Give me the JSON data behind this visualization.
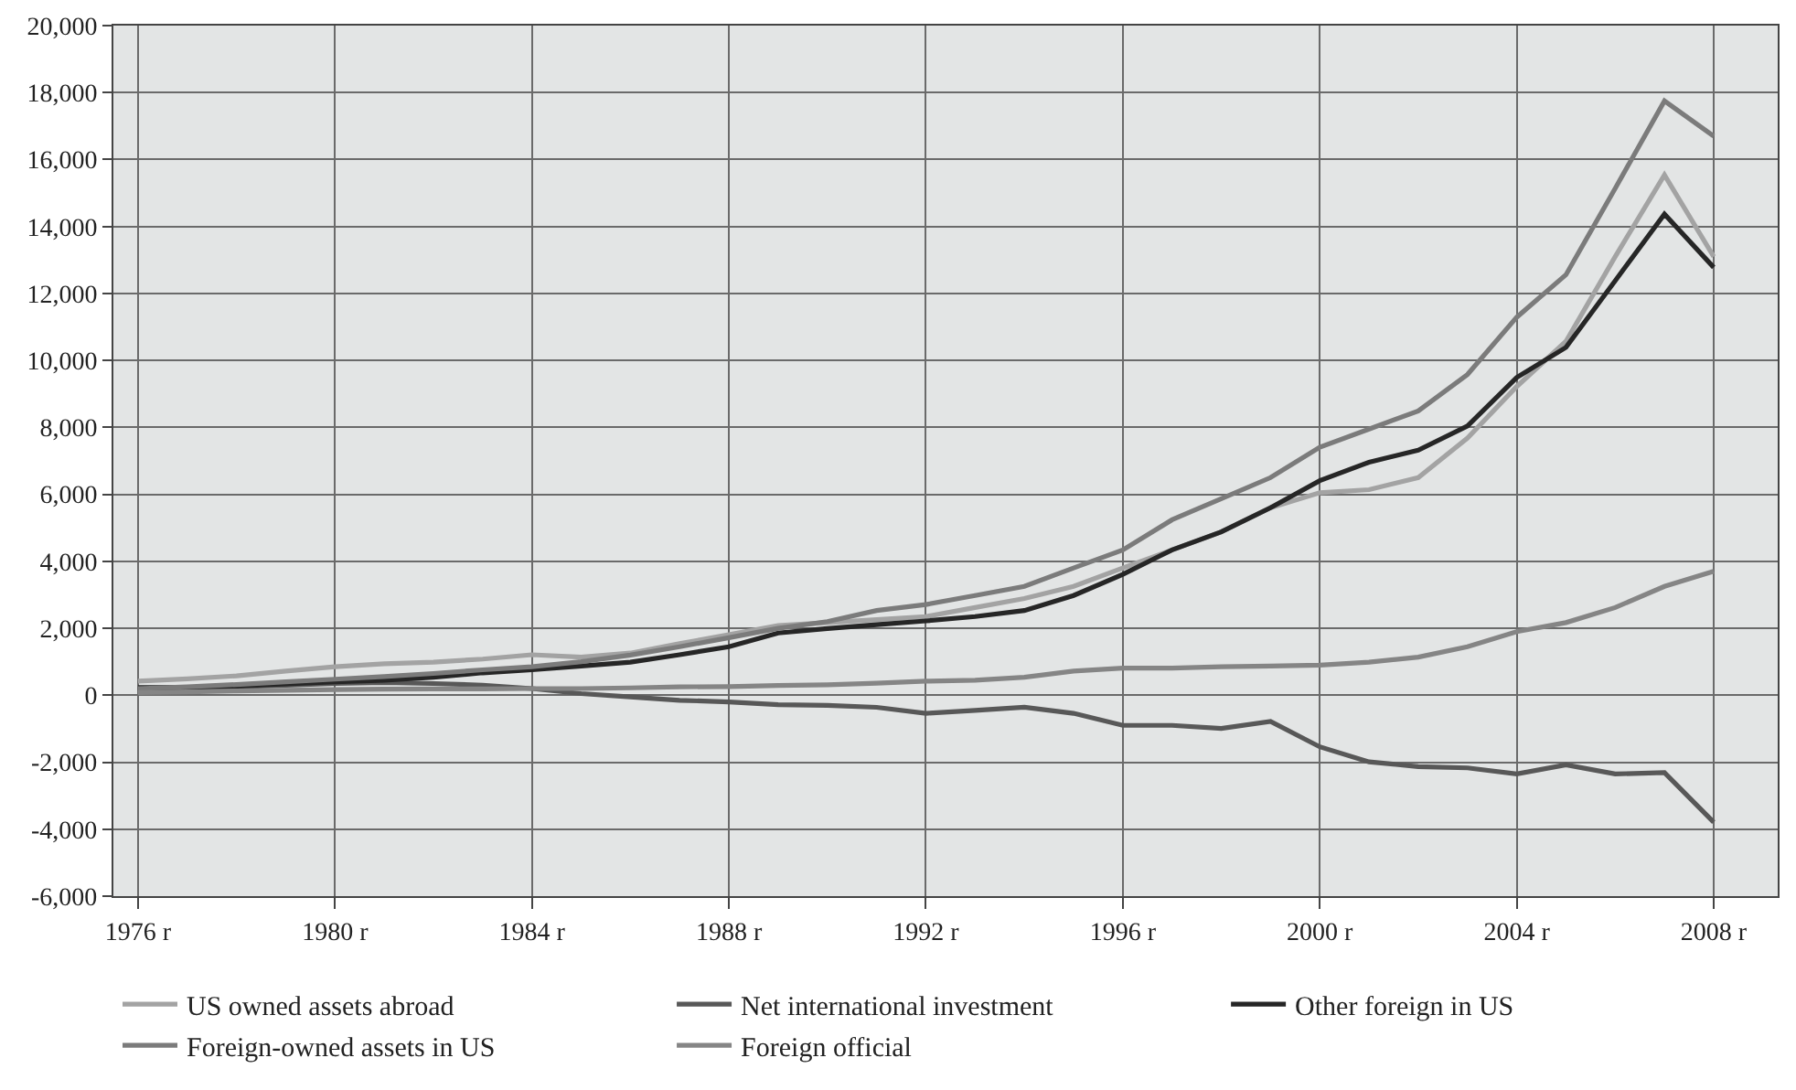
{
  "chart_data": {
    "type": "line",
    "x": [
      1976,
      1977,
      1978,
      1979,
      1980,
      1981,
      1982,
      1983,
      1984,
      1985,
      1986,
      1987,
      1988,
      1989,
      1990,
      1991,
      1992,
      1993,
      1994,
      1995,
      1996,
      1997,
      1998,
      1999,
      2000,
      2001,
      2002,
      2003,
      2004,
      2005,
      2006,
      2007,
      2008
    ],
    "series": [
      {
        "name": "US owned assets abroad",
        "color": "#a3a3a3",
        "values": [
          420,
          490,
          580,
          720,
          850,
          940,
          990,
          1080,
          1210,
          1140,
          1260,
          1540,
          1810,
          2080,
          2170,
          2260,
          2350,
          2620,
          2890,
          3250,
          3800,
          4340,
          4880,
          5600,
          6050,
          6140,
          6500,
          7680,
          9220,
          10570,
          13100,
          15540,
          13100
        ]
      },
      {
        "name": "Net international investment",
        "color": "#585858",
        "values": [
          180,
          200,
          250,
          300,
          350,
          380,
          350,
          300,
          200,
          50,
          -50,
          -150,
          -200,
          -280,
          -300,
          -360,
          -540,
          -450,
          -360,
          -540,
          -900,
          -900,
          -990,
          -780,
          -1540,
          -1990,
          -2130,
          -2170,
          -2350,
          -2080,
          -2350,
          -2310,
          -3790
        ]
      },
      {
        "name": "Other foreign in US",
        "color": "#262626",
        "values": [
          230,
          230,
          270,
          340,
          400,
          450,
          540,
          670,
          760,
          870,
          990,
          1210,
          1450,
          1860,
          1990,
          2110,
          2220,
          2350,
          2530,
          2980,
          3610,
          4340,
          4880,
          5600,
          6410,
          6960,
          7320,
          8040,
          9490,
          10390,
          12380,
          14370,
          12780
        ]
      },
      {
        "name": "Foreign-owned assets in US",
        "color": "#7b7b7b",
        "values": [
          200,
          250,
          320,
          400,
          480,
          560,
          650,
          760,
          850,
          1000,
          1200,
          1450,
          1720,
          2000,
          2200,
          2530,
          2710,
          2980,
          3250,
          3800,
          4340,
          5240,
          5870,
          6500,
          7410,
          7950,
          8490,
          9580,
          11290,
          12560,
          15140,
          17750,
          16700
        ]
      },
      {
        "name": "Foreign official",
        "color": "#858585",
        "values": [
          80,
          100,
          130,
          150,
          170,
          180,
          190,
          190,
          200,
          200,
          220,
          250,
          260,
          290,
          310,
          360,
          420,
          450,
          540,
          720,
          810,
          810,
          850,
          870,
          900,
          990,
          1140,
          1450,
          1900,
          2170,
          2620,
          3250,
          3700
        ]
      }
    ],
    "xlim": [
      1975.5,
      2009.3
    ],
    "xticks": [
      {
        "value": 1976,
        "label": "1976 r"
      },
      {
        "value": 1980,
        "label": "1980 r"
      },
      {
        "value": 1984,
        "label": "1984 r"
      },
      {
        "value": 1988,
        "label": "1988 r"
      },
      {
        "value": 1992,
        "label": "1992 r"
      },
      {
        "value": 1996,
        "label": "1996 r"
      },
      {
        "value": 2000,
        "label": "2000 r"
      },
      {
        "value": 2004,
        "label": "2004 r"
      },
      {
        "value": 2008,
        "label": "2008 r"
      }
    ],
    "ylim": [
      -6000,
      20000
    ],
    "yticks": [
      {
        "value": -6000,
        "label": "-6,000"
      },
      {
        "value": -4000,
        "label": "-4,000"
      },
      {
        "value": -2000,
        "label": "-2,000"
      },
      0,
      {
        "value": 2000,
        "label": "2,000"
      },
      {
        "value": 4000,
        "label": "4,000"
      },
      {
        "value": 6000,
        "label": "6,000"
      },
      {
        "value": 8000,
        "label": "8,000"
      },
      {
        "value": 10000,
        "label": "10,000"
      },
      {
        "value": 12000,
        "label": "12,000"
      },
      {
        "value": 14000,
        "label": "14,000"
      },
      {
        "value": 16000,
        "label": "16,000"
      },
      {
        "value": 18000,
        "label": "18,000"
      },
      {
        "value": 20000,
        "label": "20,000"
      }
    ],
    "grid": true,
    "legend": "bottom",
    "line_style": "solid",
    "marker": "none"
  }
}
